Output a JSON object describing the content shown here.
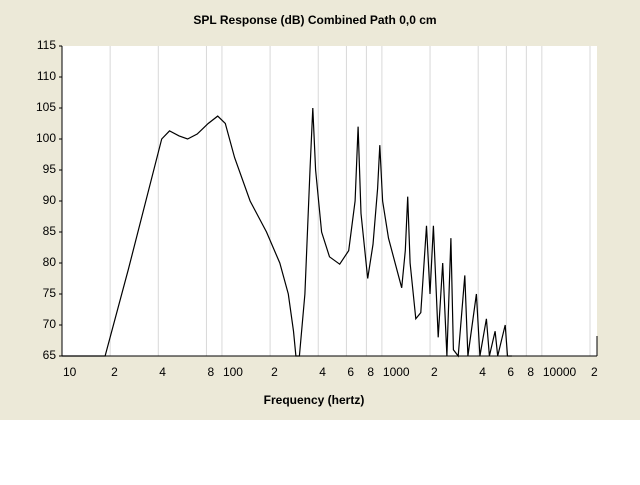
{
  "chart_data": {
    "type": "line",
    "title": "SPL Response (dB)    Combined    Path 0,0 cm",
    "x_label": "Frequency (hertz)",
    "log_x": true,
    "grid": true,
    "color": "#000000",
    "xlim": [
      10,
      20000
    ],
    "ylim": [
      65,
      115
    ],
    "yticks": [
      65,
      70,
      75,
      80,
      85,
      90,
      95,
      100,
      105,
      110,
      115
    ],
    "xticks": [
      10,
      {
        "value": 20,
        "label": "2"
      },
      {
        "value": 40,
        "label": "4"
      },
      {
        "value": 80,
        "label": "8"
      },
      100,
      {
        "value": 200,
        "label": "2"
      },
      {
        "value": 400,
        "label": "4"
      },
      {
        "value": 600,
        "label": "6"
      },
      {
        "value": 800,
        "label": "8"
      },
      1000,
      {
        "value": 2000,
        "label": "2"
      },
      {
        "value": 4000,
        "label": "4"
      },
      {
        "value": 6000,
        "label": "6"
      },
      {
        "value": 8000,
        "label": "8"
      },
      10000,
      {
        "value": 20000,
        "label": "2"
      }
    ],
    "x": [
      10,
      18.6,
      26,
      35,
      42,
      47,
      54,
      61,
      70,
      82,
      94,
      105,
      120,
      150,
      190,
      230,
      260,
      280,
      290,
      305,
      330,
      355,
      370,
      385,
      420,
      470,
      545,
      620,
      680,
      710,
      740,
      815,
      880,
      940,
      970,
      1010,
      1100,
      1330,
      1400,
      1450,
      1500,
      1630,
      1750,
      1900,
      2000,
      2100,
      2250,
      2400,
      2550,
      2700,
      2800,
      3000,
      3300,
      3450,
      3900,
      4100,
      4500,
      4700,
      5100,
      5300,
      5900,
      6100,
      6500
    ],
    "values": [
      65,
      65,
      79,
      92,
      100,
      101.3,
      100.5,
      100,
      100.8,
      102.5,
      103.7,
      102.5,
      97,
      90,
      85,
      80,
      75,
      69,
      65,
      65,
      75,
      95,
      105,
      95,
      85,
      81,
      79.8,
      82,
      90,
      102,
      88,
      77.5,
      83,
      92,
      99,
      90,
      84,
      76,
      82,
      90.7,
      80,
      71,
      72,
      86,
      75,
      86,
      68,
      80,
      65,
      84,
      66,
      65,
      78,
      65,
      75,
      65,
      71,
      65,
      69,
      65,
      70,
      65,
      65
    ]
  }
}
